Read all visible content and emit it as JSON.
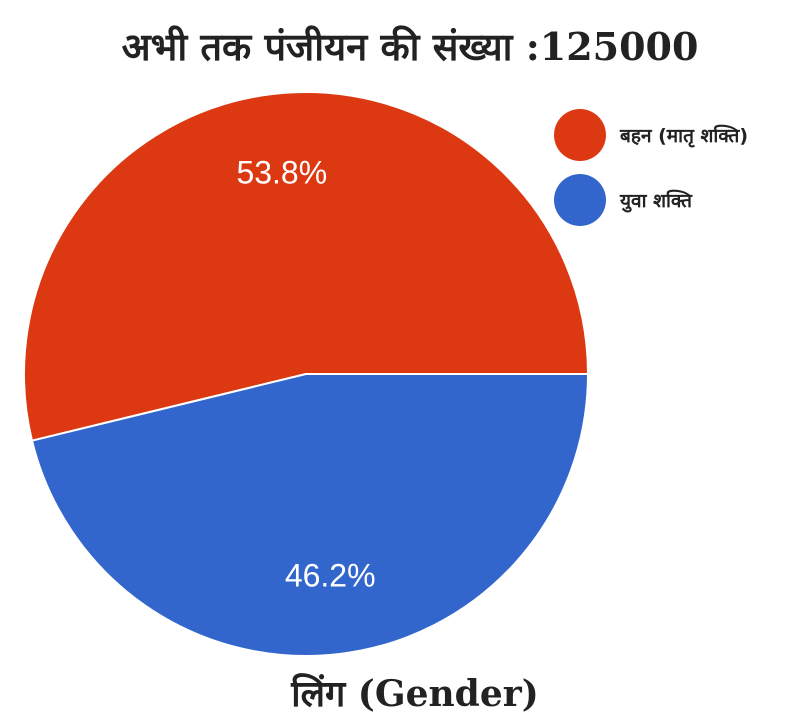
{
  "chart_data": {
    "type": "pie",
    "title": "अभी तक पंजीयन की संख्या :125000",
    "caption": "लिंग (Gender)",
    "categories": [
      "बहन (मातृ शक्ति)",
      "युवा शक्ति"
    ],
    "values": [
      53.8,
      46.2
    ],
    "labels": [
      "53.8%",
      "46.2%"
    ],
    "colors": [
      "#dc3912",
      "#3366cc"
    ],
    "legend": "right"
  }
}
